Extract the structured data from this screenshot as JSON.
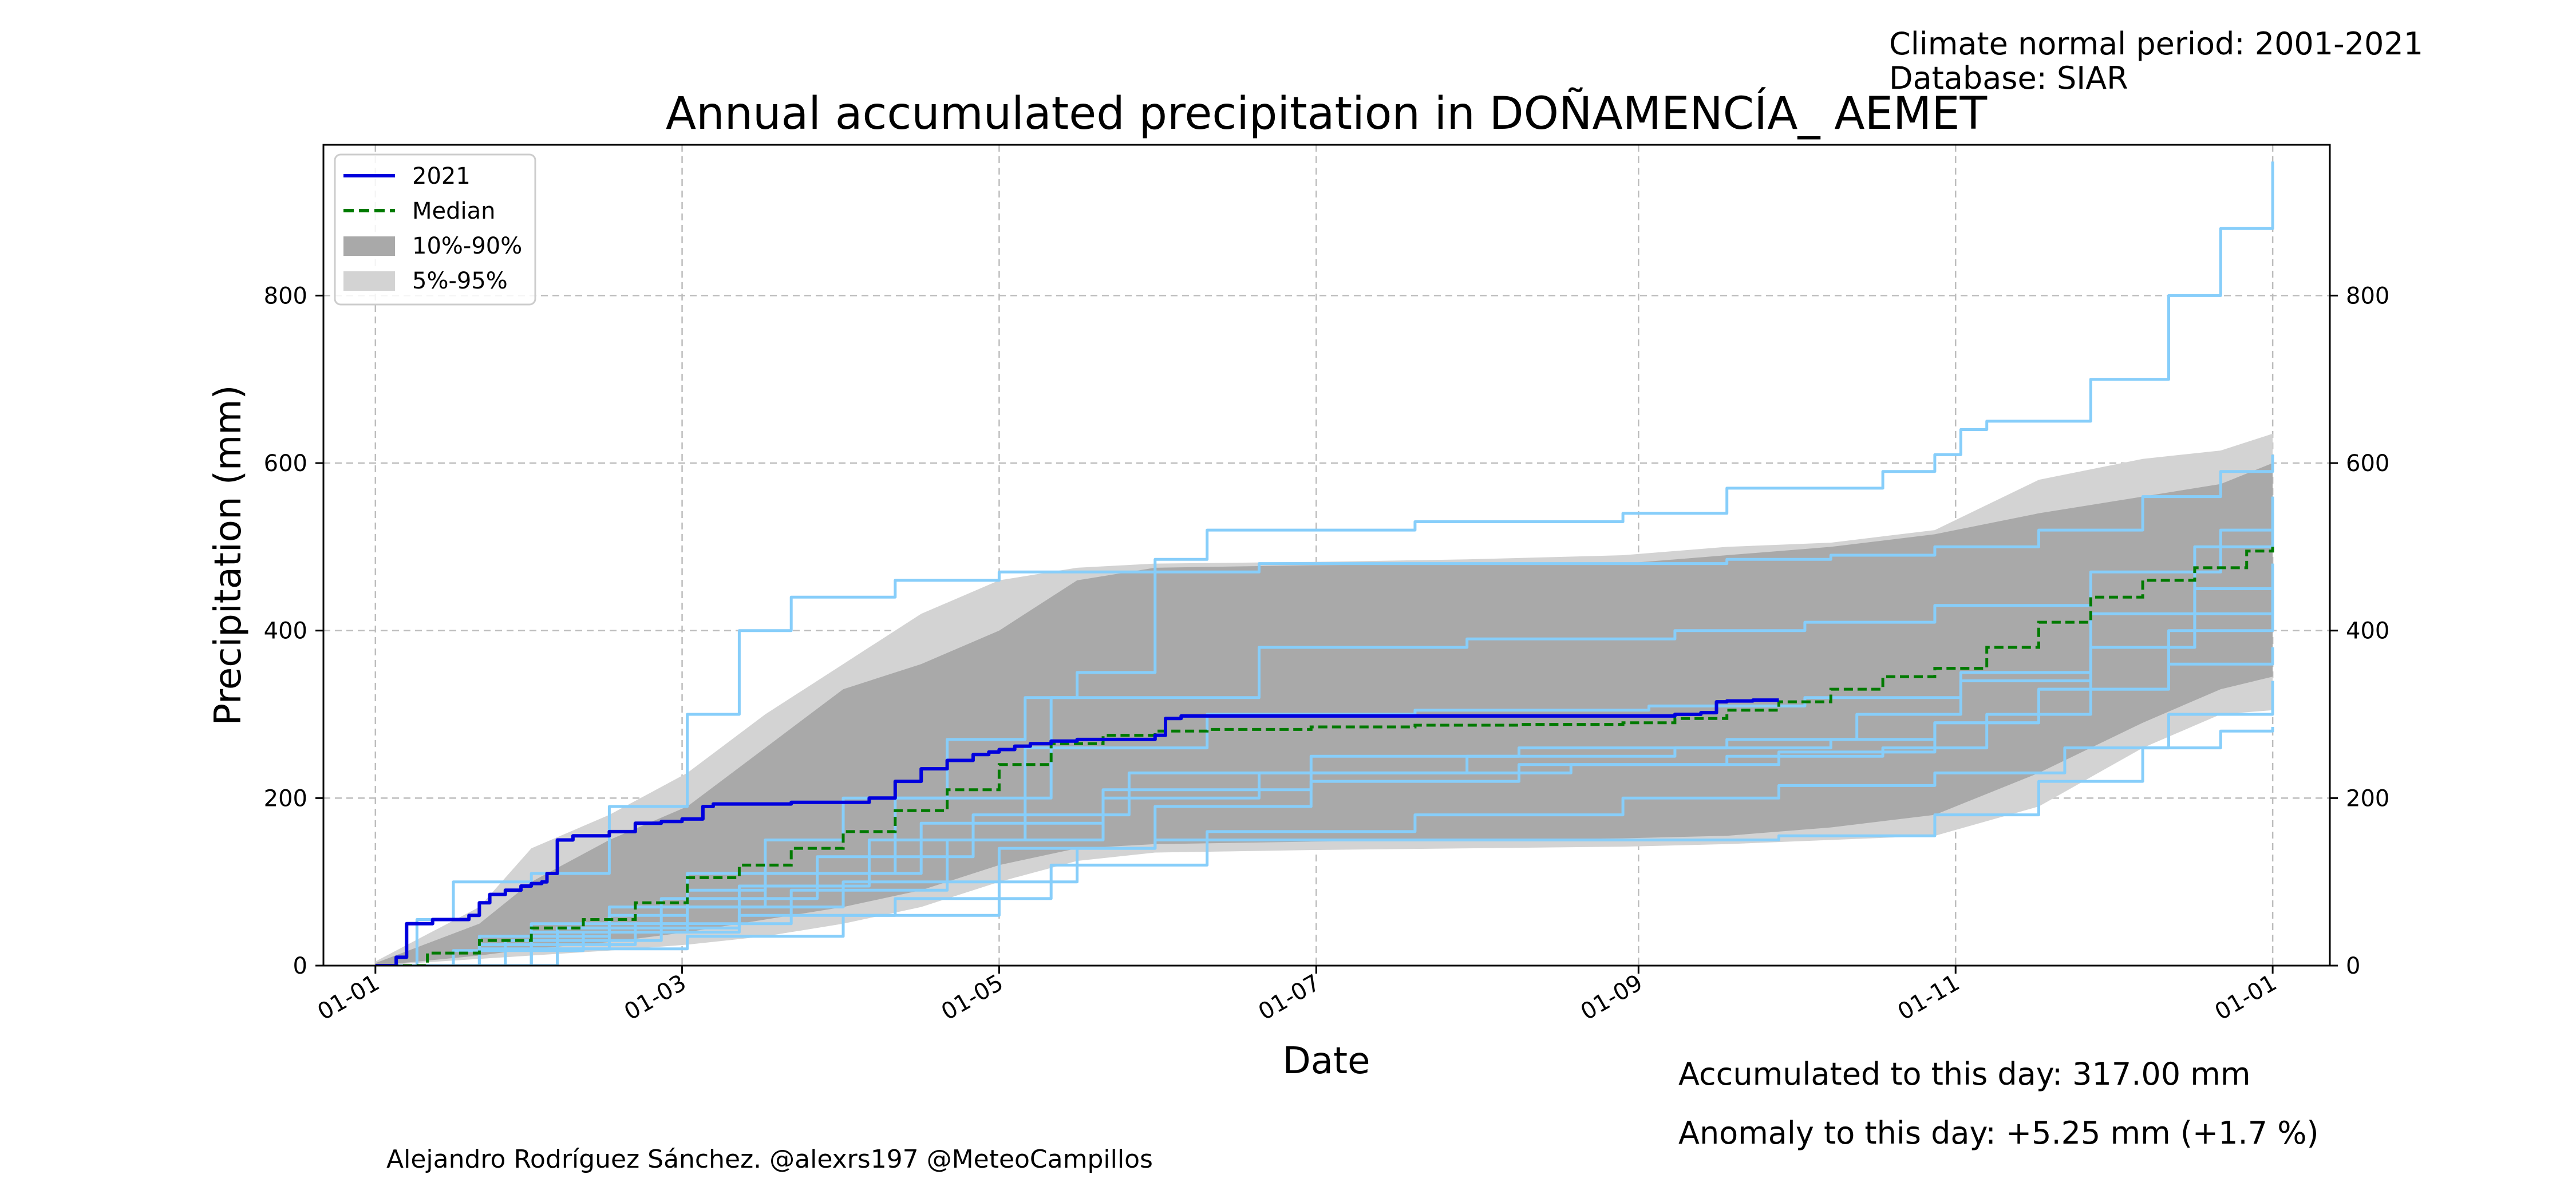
{
  "header": {
    "normal_period": "Climate normal period: 2001-2021",
    "database": "Database: SIAR"
  },
  "footer": {
    "accumulated": "Accumulated to this day: 317.00 mm",
    "anomaly": "Anomaly to this day: +5.25 mm (+1.7 %)",
    "anomaly_color": "#0000ff",
    "credit": "Alejandro Rodríguez Sánchez. @alexrs197 @MeteoCampillos"
  },
  "chart_data": {
    "type": "line",
    "title": "Annual accumulated precipitation in DOÑAMENCÍA_ AEMET",
    "xlabel": "Date",
    "ylabel": "Precipitation (mm)",
    "x_axis": "day of year",
    "xlim": [
      -10,
      376
    ],
    "ylim": [
      0,
      980
    ],
    "grid": true,
    "legend_position": "top-left",
    "x_ticks": [
      {
        "label": "01-01",
        "day": 0
      },
      {
        "label": "01-03",
        "day": 59
      },
      {
        "label": "01-05",
        "day": 120
      },
      {
        "label": "01-07",
        "day": 181
      },
      {
        "label": "01-09",
        "day": 243
      },
      {
        "label": "01-11",
        "day": 304
      },
      {
        "label": "01-01",
        "day": 365
      }
    ],
    "y_ticks": [
      0,
      200,
      400,
      600,
      800
    ],
    "legend": [
      "2021",
      "Median",
      "10%-90%",
      "5%-95%"
    ],
    "colors": {
      "current": "#0000dd",
      "median": "#007a00",
      "band_10_90": "#a9a9a9",
      "band_5_95": "#d3d3d3",
      "historical": "#87cefa"
    },
    "band_5_95": {
      "x": [
        0,
        20,
        30,
        45,
        60,
        75,
        90,
        105,
        120,
        135,
        150,
        180,
        210,
        240,
        260,
        280,
        300,
        320,
        340,
        355,
        365
      ],
      "lower": [
        0,
        8,
        12,
        18,
        25,
        35,
        50,
        70,
        100,
        125,
        135,
        138,
        140,
        142,
        145,
        150,
        155,
        190,
        260,
        300,
        305
      ],
      "upper": [
        5,
        70,
        140,
        180,
        230,
        300,
        360,
        420,
        460,
        475,
        480,
        482,
        485,
        490,
        500,
        505,
        520,
        580,
        605,
        615,
        635
      ]
    },
    "band_10_90": {
      "x": [
        0,
        20,
        30,
        45,
        60,
        75,
        90,
        105,
        120,
        135,
        150,
        180,
        210,
        240,
        260,
        280,
        300,
        320,
        340,
        355,
        365
      ],
      "lower": [
        0,
        12,
        20,
        28,
        40,
        55,
        70,
        90,
        120,
        140,
        145,
        148,
        150,
        152,
        155,
        165,
        180,
        230,
        290,
        330,
        345
      ],
      "upper": [
        3,
        50,
        100,
        150,
        190,
        260,
        330,
        360,
        400,
        460,
        475,
        478,
        480,
        480,
        490,
        500,
        515,
        540,
        560,
        575,
        600
      ]
    },
    "series": [
      {
        "name": "2021",
        "x": [
          0,
          3,
          4,
          6,
          11,
          18,
          20,
          22,
          25,
          28,
          30,
          32,
          33,
          35,
          38,
          40,
          45,
          50,
          55,
          59,
          63,
          65,
          70,
          80,
          90,
          95,
          100,
          105,
          110,
          115,
          118,
          120,
          123,
          126,
          130,
          135,
          140,
          150,
          152,
          155,
          160,
          170,
          180,
          200,
          220,
          240,
          250,
          255,
          258,
          260,
          265,
          270
        ],
        "y": [
          0,
          0,
          10,
          50,
          55,
          60,
          75,
          85,
          90,
          95,
          98,
          100,
          110,
          150,
          155,
          155,
          160,
          170,
          172,
          175,
          190,
          193,
          193,
          195,
          195,
          200,
          220,
          235,
          245,
          252,
          255,
          258,
          262,
          265,
          268,
          270,
          270,
          275,
          295,
          298,
          298,
          298,
          298,
          298,
          298,
          298,
          300,
          302,
          315,
          316,
          317,
          317
        ]
      },
      {
        "name": "Median",
        "x": [
          0,
          10,
          20,
          30,
          40,
          50,
          60,
          70,
          80,
          90,
          100,
          110,
          120,
          130,
          140,
          150,
          160,
          180,
          200,
          220,
          240,
          250,
          260,
          270,
          280,
          290,
          300,
          310,
          320,
          330,
          340,
          350,
          360,
          365
        ],
        "y": [
          0,
          15,
          30,
          45,
          55,
          75,
          105,
          120,
          140,
          160,
          185,
          210,
          240,
          265,
          275,
          280,
          282,
          285,
          287,
          288,
          290,
          295,
          305,
          315,
          330,
          345,
          355,
          380,
          410,
          440,
          460,
          475,
          495,
          500
        ]
      }
    ],
    "historical_years": [
      {
        "x": [
          0,
          8,
          15,
          30,
          45,
          60,
          70,
          80,
          100,
          120,
          150,
          160,
          200,
          240,
          260,
          290,
          300,
          305,
          310,
          330,
          345,
          355,
          365
        ],
        "y": [
          0,
          55,
          100,
          110,
          190,
          300,
          400,
          440,
          460,
          470,
          485,
          520,
          530,
          540,
          570,
          590,
          610,
          640,
          650,
          700,
          800,
          880,
          960
        ]
      },
      {
        "x": [
          0,
          20,
          45,
          60,
          75,
          90,
          110,
          125,
          135,
          150,
          170,
          200,
          240,
          260,
          280,
          300,
          320,
          340,
          355,
          365
        ],
        "y": [
          0,
          20,
          60,
          90,
          150,
          200,
          270,
          320,
          350,
          470,
          480,
          480,
          480,
          485,
          490,
          500,
          520,
          560,
          590,
          610
        ]
      },
      {
        "x": [
          0,
          30,
          60,
          90,
          120,
          135,
          150,
          180,
          240,
          270,
          300,
          320,
          340,
          355,
          365
        ],
        "y": [
          0,
          20,
          35,
          60,
          100,
          140,
          150,
          150,
          150,
          155,
          180,
          220,
          260,
          280,
          285
        ]
      },
      {
        "x": [
          0,
          30,
          60,
          90,
          120,
          150,
          180,
          220,
          260,
          290,
          310,
          330,
          350,
          365
        ],
        "y": [
          0,
          40,
          70,
          100,
          140,
          190,
          220,
          240,
          250,
          260,
          300,
          380,
          450,
          480
        ]
      },
      {
        "x": [
          0,
          20,
          50,
          80,
          110,
          140,
          170,
          210,
          250,
          280,
          300,
          320,
          345,
          365
        ],
        "y": [
          0,
          25,
          50,
          90,
          150,
          200,
          230,
          250,
          260,
          270,
          290,
          330,
          400,
          440
        ]
      },
      {
        "x": [
          0,
          25,
          55,
          85,
          115,
          145,
          180,
          220,
          260,
          285,
          305,
          330,
          350,
          365
        ],
        "y": [
          0,
          30,
          80,
          130,
          180,
          230,
          250,
          260,
          270,
          300,
          350,
          420,
          500,
          540
        ]
      },
      {
        "x": [
          0,
          15,
          40,
          70,
          100,
          130,
          160,
          200,
          240,
          270,
          300,
          325,
          345,
          365
        ],
        "y": [
          0,
          18,
          40,
          60,
          80,
          120,
          160,
          180,
          200,
          215,
          230,
          260,
          300,
          340
        ]
      },
      {
        "x": [
          0,
          30,
          60,
          100,
          130,
          170,
          210,
          250,
          275,
          300,
          330,
          355,
          365
        ],
        "y": [
          0,
          50,
          110,
          200,
          320,
          380,
          390,
          400,
          410,
          430,
          470,
          520,
          560
        ]
      },
      {
        "x": [
          0,
          20,
          45,
          75,
          105,
          140,
          180,
          230,
          270,
          300,
          320,
          345,
          365
        ],
        "y": [
          0,
          35,
          70,
          110,
          170,
          210,
          230,
          240,
          255,
          290,
          330,
          360,
          380
        ]
      },
      {
        "x": [
          0,
          35,
          70,
          95,
          125,
          160,
          200,
          245,
          275,
          305,
          330,
          350,
          365
        ],
        "y": [
          0,
          45,
          95,
          150,
          260,
          300,
          305,
          310,
          320,
          340,
          380,
          420,
          450
        ]
      }
    ]
  }
}
